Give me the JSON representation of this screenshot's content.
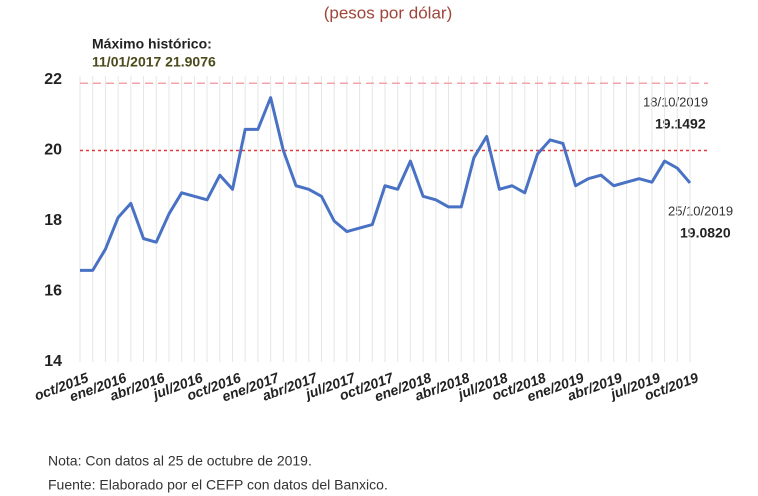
{
  "chart_data": {
    "type": "line",
    "subtitle": "(pesos por dólar)",
    "annotations": [
      {
        "text": "Máximo histórico:"
      },
      {
        "text": "11/01/2017  21.9076"
      },
      {
        "text": "18/10/2019"
      },
      {
        "text": "19.1492"
      },
      {
        "text": "25/10/2019"
      },
      {
        "text": "19.0820"
      }
    ],
    "categories": [
      "oct/2015",
      null,
      null,
      "ene/2016",
      null,
      null,
      "abr/2016",
      null,
      null,
      "jul/2016",
      null,
      null,
      "oct/2016",
      null,
      null,
      "ene/2017",
      null,
      null,
      "abr/2017",
      null,
      null,
      "jul/2017",
      null,
      null,
      "oct/2017",
      null,
      null,
      "ene/2018",
      null,
      null,
      "abr/2018",
      null,
      null,
      "jul/2018",
      null,
      null,
      "oct/2018",
      null,
      null,
      "ene/2019",
      null,
      null,
      "abr/2019",
      null,
      null,
      "jul/2019",
      null,
      null,
      "oct/2019"
    ],
    "values": [
      16.6,
      16.6,
      17.2,
      18.1,
      18.5,
      17.5,
      17.4,
      18.2,
      18.8,
      18.7,
      18.6,
      19.3,
      18.9,
      20.6,
      20.6,
      21.5,
      20.0,
      19.0,
      18.9,
      18.7,
      18.0,
      17.7,
      17.8,
      17.9,
      19.0,
      18.9,
      19.7,
      18.7,
      18.6,
      18.4,
      18.4,
      19.8,
      20.4,
      18.9,
      19.0,
      18.8,
      19.9,
      20.3,
      20.2,
      19.0,
      19.2,
      19.3,
      19.0,
      19.1,
      19.2,
      19.1,
      19.7,
      19.5,
      19.08
    ],
    "color": "#4a72c4",
    "ylim": [
      14,
      22
    ],
    "yticks": [
      14,
      16,
      18,
      20,
      22
    ],
    "grid": true,
    "hlines": [
      {
        "value": 21.9076,
        "color": "#f4a3ab"
      },
      {
        "value": 20,
        "color": "#e03a3a"
      }
    ],
    "notes": [
      "Nota: Con datos al 25 de octubre de 2019.",
      "Fuente: Elaborado por el CEFP con datos del Banxico."
    ]
  }
}
